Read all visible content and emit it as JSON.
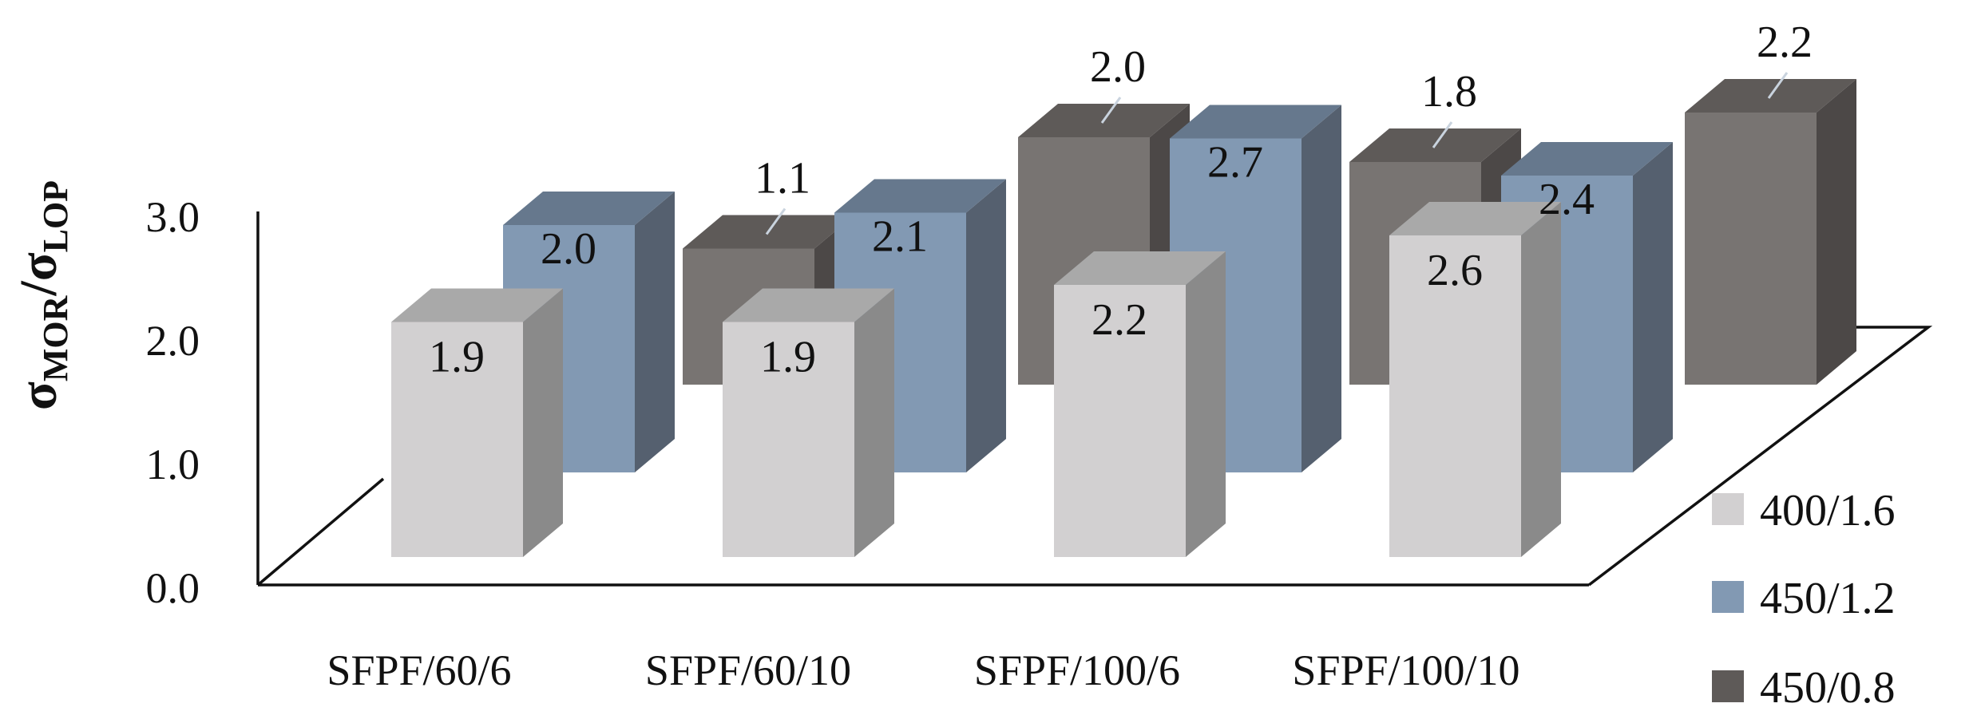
{
  "chart_data": {
    "type": "bar",
    "subtype": "3d-clustered-columns",
    "title": "",
    "xlabel": "",
    "ylabel": {
      "base": "σ",
      "sub1": "MOR",
      "sep": "/",
      "sub2": "LOP"
    },
    "ylim": [
      0.0,
      3.0
    ],
    "yticks": [
      "0.0",
      "1.0",
      "2.0",
      "3.0"
    ],
    "categories": [
      "SFPF/60/6",
      "SFPF/60/10",
      "SFPF/100/6",
      "SFPF/100/10"
    ],
    "series": [
      {
        "name": "400/1.6",
        "values": [
          1.9,
          1.9,
          2.2,
          2.6
        ],
        "labels": [
          "1.9",
          "1.9",
          "2.2",
          "2.6"
        ]
      },
      {
        "name": "450/1.2",
        "values": [
          2.0,
          2.1,
          2.7,
          2.4
        ],
        "labels": [
          "2.0",
          "2.1",
          "2.7",
          "2.4"
        ]
      },
      {
        "name": "450/0.8",
        "values": [
          1.1,
          2.0,
          1.8,
          2.2
        ],
        "labels": [
          "1.1",
          "2.0",
          "1.8",
          "2.2"
        ]
      }
    ],
    "legend_position": "right",
    "grid": false,
    "colors": {
      "400/1.6": {
        "front": "#d2d0d1",
        "top": "#a9a9a9",
        "side": "#8a8a8a"
      },
      "450/1.2": {
        "front": "#8299b3",
        "top": "#66788d",
        "side": "#55606f"
      },
      "450/0.8": {
        "front": "#787472",
        "top": "#5e5a58",
        "side": "#4c4847"
      }
    }
  }
}
